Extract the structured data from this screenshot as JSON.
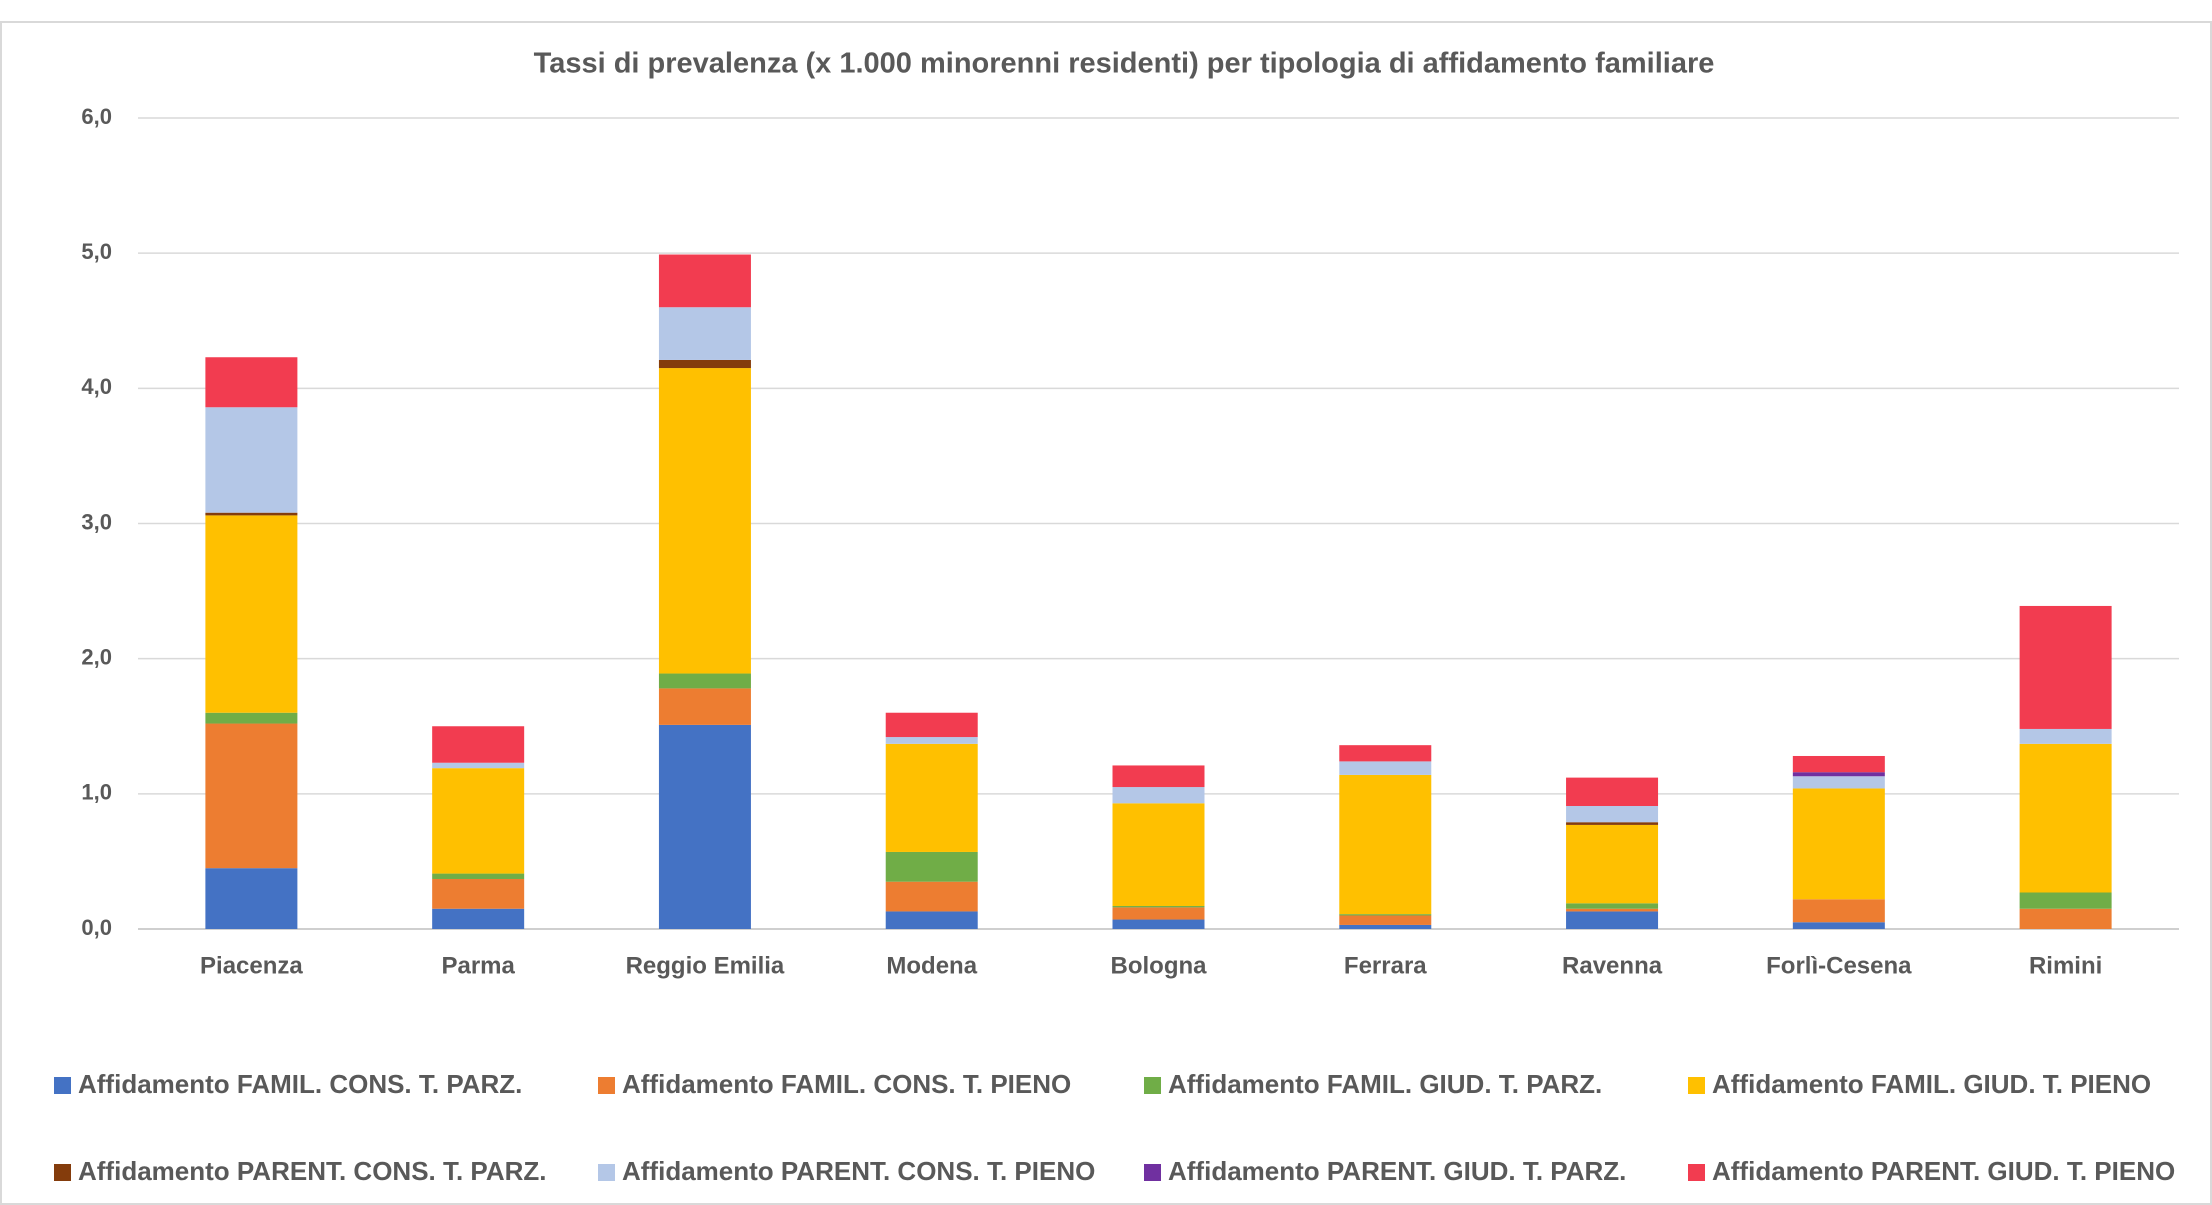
{
  "chart_data": {
    "type": "stacked_bar",
    "title": "Tassi di prevalenza (x 1.000 minorenni residenti) per tipologia di affidamento familiare",
    "categories": [
      "Piacenza",
      "Parma",
      "Reggio Emilia",
      "Modena",
      "Bologna",
      "Ferrara",
      "Ravenna",
      "Forlì-Cesena",
      "Rimini"
    ],
    "series": [
      {
        "name": "Affidamento FAMIL. CONS. T. PARZ.",
        "color": "#4472c4",
        "values": [
          0.45,
          0.15,
          1.51,
          0.13,
          0.07,
          0.03,
          0.13,
          0.05,
          0
        ]
      },
      {
        "name": "Affidamento FAMIL. CONS. T. PIENO",
        "color": "#ed7d31",
        "values": [
          1.07,
          0.22,
          0.27,
          0.22,
          0.09,
          0.07,
          0.02,
          0.17,
          0.15
        ]
      },
      {
        "name": "Affidamento FAMIL. GIUD. T. PARZ.",
        "color": "#70ad47",
        "values": [
          0.08,
          0.04,
          0.11,
          0.22,
          0.01,
          0.01,
          0.04,
          0,
          0.12
        ]
      },
      {
        "name": "Affidamento FAMIL. GIUD. T. PIENO",
        "color": "#ffc000",
        "values": [
          1.46,
          0.78,
          2.26,
          0.8,
          0.76,
          1.03,
          0.58,
          0.82,
          1.1
        ]
      },
      {
        "name": "Affidamento PARENT. CONS. T. PARZ.",
        "color": "#843c0c",
        "values": [
          0.02,
          0,
          0.06,
          0,
          0,
          0,
          0.02,
          0,
          0
        ]
      },
      {
        "name": "Affidamento PARENT. CONS. T. PIENO",
        "color": "#b4c7e7",
        "values": [
          0.78,
          0.04,
          0.39,
          0.05,
          0.12,
          0.1,
          0.12,
          0.09,
          0.11
        ]
      },
      {
        "name": "Affidamento PARENT. GIUD. T. PARZ.",
        "color": "#7030a0",
        "values": [
          0,
          0,
          0,
          0,
          0,
          0,
          0,
          0.03,
          0
        ]
      },
      {
        "name": "Affidamento PARENT. GIUD. T. PIENO",
        "color": "#f23c50",
        "values": [
          0.37,
          0.27,
          0.39,
          0.18,
          0.16,
          0.12,
          0.21,
          0.12,
          0.91
        ]
      }
    ],
    "ylim": [
      0,
      6
    ],
    "yticks": [
      {
        "value": 0,
        "label": "0,0"
      },
      {
        "value": 1,
        "label": "1,0"
      },
      {
        "value": 2,
        "label": "2,0"
      },
      {
        "value": 3,
        "label": "3,0"
      },
      {
        "value": 4,
        "label": "4,0"
      },
      {
        "value": 5,
        "label": "5,0"
      },
      {
        "value": 6,
        "label": "6,0"
      }
    ],
    "grid": true,
    "legend": "bottom"
  }
}
